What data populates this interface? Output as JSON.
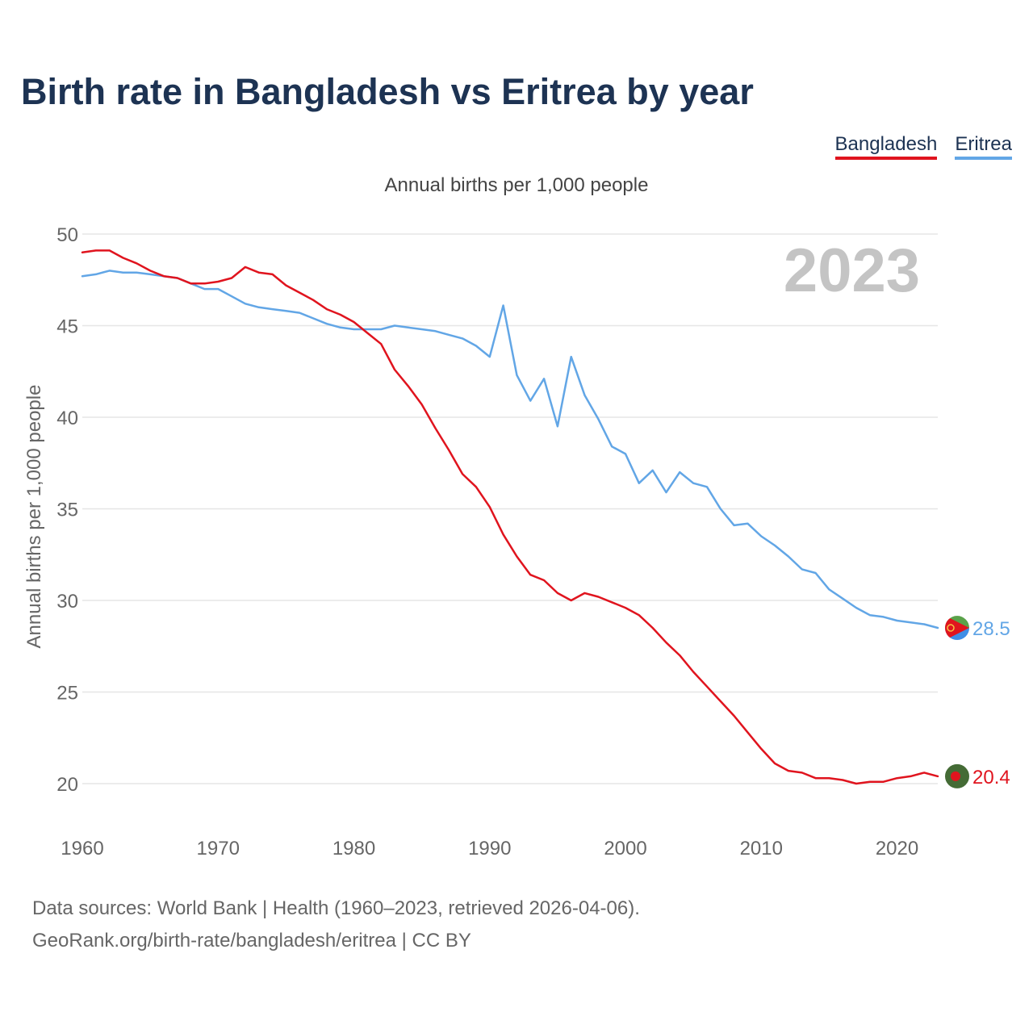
{
  "header": {
    "title": "Birth rate in Bangladesh vs Eritrea by year",
    "subtitle": "Annual births per 1,000 people"
  },
  "legend": [
    {
      "label": "Bangladesh",
      "color": "#e0141e"
    },
    {
      "label": "Eritrea",
      "color": "#62a6e6"
    }
  ],
  "chart_data": {
    "type": "line",
    "title": "Birth rate in Bangladesh vs Eritrea by year",
    "subtitle": "Annual births per 1,000 people",
    "xlabel": "",
    "ylabel": "Annual births per 1,000 people",
    "ylim": [
      18,
      50
    ],
    "xlim": [
      1960,
      2023
    ],
    "yticks": [
      20,
      25,
      30,
      35,
      40,
      45,
      50
    ],
    "xticks": [
      1960,
      1970,
      1980,
      1990,
      2000,
      2010,
      2020
    ],
    "grid": true,
    "year_label": "2023",
    "x": [
      1960,
      1961,
      1962,
      1963,
      1964,
      1965,
      1966,
      1967,
      1968,
      1969,
      1970,
      1971,
      1972,
      1973,
      1974,
      1975,
      1976,
      1977,
      1978,
      1979,
      1980,
      1981,
      1982,
      1983,
      1984,
      1985,
      1986,
      1987,
      1988,
      1989,
      1990,
      1991,
      1992,
      1993,
      1994,
      1995,
      1996,
      1997,
      1998,
      1999,
      2000,
      2001,
      2002,
      2003,
      2004,
      2005,
      2006,
      2007,
      2008,
      2009,
      2010,
      2011,
      2012,
      2013,
      2014,
      2015,
      2016,
      2017,
      2018,
      2019,
      2020,
      2021,
      2022,
      2023
    ],
    "series": [
      {
        "name": "Bangladesh",
        "color": "#e0141e",
        "end_label": "20.4",
        "values": [
          49.0,
          49.1,
          49.1,
          48.7,
          48.4,
          48.0,
          47.7,
          47.6,
          47.3,
          47.3,
          47.4,
          47.6,
          48.2,
          47.9,
          47.8,
          47.2,
          46.8,
          46.4,
          45.9,
          45.6,
          45.2,
          44.6,
          44.0,
          42.6,
          41.7,
          40.7,
          39.4,
          38.2,
          36.9,
          36.2,
          35.1,
          33.6,
          32.4,
          31.4,
          31.1,
          30.4,
          30.0,
          30.4,
          30.2,
          29.9,
          29.6,
          29.2,
          28.5,
          27.7,
          27.0,
          26.1,
          25.3,
          24.5,
          23.7,
          22.8,
          21.9,
          21.1,
          20.7,
          20.6,
          20.3,
          20.3,
          20.2,
          20.0,
          20.1,
          20.1,
          20.3,
          20.4,
          20.6,
          20.4
        ]
      },
      {
        "name": "Eritrea",
        "color": "#62a6e6",
        "end_label": "28.5",
        "values": [
          47.7,
          47.8,
          48.0,
          47.9,
          47.9,
          47.8,
          47.7,
          47.6,
          47.3,
          47.0,
          47.0,
          46.6,
          46.2,
          46.0,
          45.9,
          45.8,
          45.7,
          45.4,
          45.1,
          44.9,
          44.8,
          44.8,
          44.8,
          45.0,
          44.9,
          44.8,
          44.7,
          44.5,
          44.3,
          43.9,
          43.3,
          46.1,
          42.3,
          40.9,
          42.1,
          39.5,
          43.3,
          41.2,
          39.9,
          38.4,
          38.0,
          36.4,
          37.1,
          35.9,
          37.0,
          36.4,
          36.2,
          35.0,
          34.1,
          34.2,
          33.5,
          33.0,
          32.4,
          31.7,
          31.5,
          30.6,
          30.1,
          29.6,
          29.2,
          29.1,
          28.9,
          28.8,
          28.7,
          28.5
        ]
      }
    ]
  },
  "footer": {
    "line1": "Data sources: World Bank | Health (1960–2023, retrieved 2026-04-06).",
    "line2": "GeoRank.org/birth-rate/bangladesh/eritrea | CC BY"
  },
  "colors": {
    "title": "#1d3353",
    "grid": "#e6e6e6",
    "axis_text": "#666666",
    "year_label": "#c4c4c4",
    "bangladesh_flag_green": "#446b35",
    "bangladesh_flag_red": "#e0141e",
    "eritrea_flag_green": "#5aa24a",
    "eritrea_flag_blue": "#3f8ee6",
    "eritrea_flag_red": "#e0141e",
    "eritrea_flag_yellow": "#f6c343"
  }
}
